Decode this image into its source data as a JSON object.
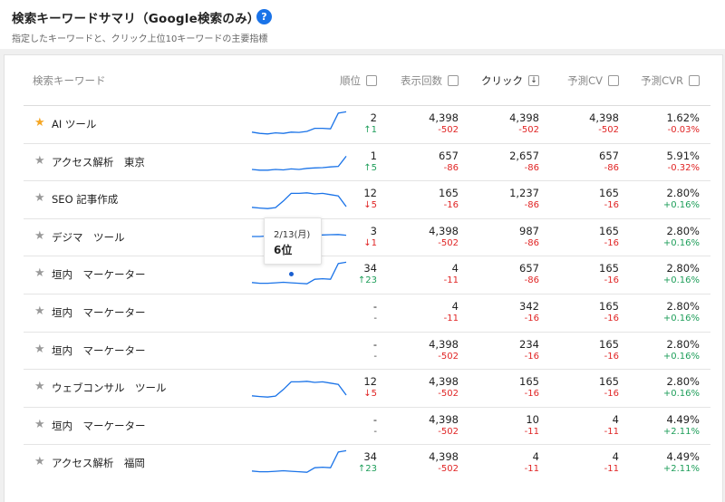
{
  "header": {
    "title": "検索キーワードサマリ（Google検索のみ）",
    "help_icon": "?",
    "subtitle": "指定したキーワードと、クリック上位10キーワードの主要指標"
  },
  "columns": {
    "keyword": "検索キーワード",
    "rank": "順位",
    "impressions": "表示回数",
    "clicks": "クリック",
    "cv": "予測CV",
    "cvr": "予測CVR",
    "sort_icon": "↓"
  },
  "colors": {
    "accent": "#1a73e8",
    "sparkline": "#1a73e8",
    "negative": "#e02424",
    "positive": "#1e9e5a",
    "star_on": "#f5a623",
    "star_off": "#9a9a9a"
  },
  "tooltip": {
    "date": "2/13(月)",
    "value": "6位"
  },
  "rows": [
    {
      "starred": true,
      "keyword": "AI ツール",
      "trend": [
        0.85,
        0.9,
        0.92,
        0.88,
        0.9,
        0.85,
        0.86,
        0.82,
        0.7,
        0.7,
        0.72,
        0.1,
        0.05
      ],
      "rank": "2",
      "rank_change": "↑1",
      "rank_dir": "up",
      "imp": "4,398",
      "imp_d": "-502",
      "clk": "4,398",
      "clk_d": "-502",
      "cv": "4,398",
      "cv_d": "-502",
      "cvr": "1.62%",
      "cvr_d": "-0.03%",
      "cvr_dir": "down"
    },
    {
      "starred": false,
      "keyword": "アクセス解析　東京",
      "trend": [
        0.82,
        0.85,
        0.85,
        0.82,
        0.84,
        0.8,
        0.82,
        0.78,
        0.76,
        0.75,
        0.72,
        0.7,
        0.3
      ],
      "rank": "1",
      "rank_change": "↑5",
      "rank_dir": "up",
      "imp": "657",
      "imp_d": "-86",
      "clk": "2,657",
      "clk_d": "-86",
      "cv": "657",
      "cv_d": "-86",
      "cvr": "5.91%",
      "cvr_d": "-0.32%",
      "cvr_dir": "down"
    },
    {
      "starred": false,
      "keyword": "SEO 記事作成",
      "trend": [
        0.85,
        0.88,
        0.9,
        0.86,
        0.6,
        0.3,
        0.3,
        0.28,
        0.32,
        0.3,
        0.35,
        0.4,
        0.82
      ],
      "rank": "12",
      "rank_change": "↓5",
      "rank_dir": "down",
      "imp": "165",
      "imp_d": "-16",
      "clk": "1,237",
      "clk_d": "-86",
      "cv": "165",
      "cv_d": "-16",
      "cvr": "2.80%",
      "cvr_d": "+0.16%",
      "cvr_dir": "up"
    },
    {
      "starred": false,
      "keyword": "デジマ　ツール",
      "trend": [
        0.5,
        0.5,
        0.48,
        0.46,
        0.45,
        0.45,
        0.44,
        0.43,
        0.45,
        0.44,
        0.43,
        0.42,
        0.45
      ],
      "rank": "3",
      "rank_change": "↓1",
      "rank_dir": "down",
      "imp": "4,398",
      "imp_d": "-502",
      "clk": "987",
      "clk_d": "-86",
      "cv": "165",
      "cv_d": "-16",
      "cvr": "2.80%",
      "cvr_d": "+0.16%",
      "cvr_dir": "up"
    },
    {
      "starred": false,
      "keyword": "垣内　マーケーター",
      "trend": [
        0.85,
        0.88,
        0.88,
        0.86,
        0.84,
        0.86,
        0.88,
        0.9,
        0.72,
        0.7,
        0.72,
        0.1,
        0.05
      ],
      "rank": "34",
      "rank_change": "↑23",
      "rank_dir": "up",
      "imp": "4",
      "imp_d": "-11",
      "clk": "657",
      "clk_d": "-86",
      "cv": "165",
      "cv_d": "-16",
      "cvr": "2.80%",
      "cvr_d": "+0.16%",
      "cvr_dir": "up"
    },
    {
      "starred": false,
      "keyword": "垣内　マーケーター",
      "trend": null,
      "rank": "-",
      "rank_change": "-",
      "rank_dir": "none",
      "imp": "4",
      "imp_d": "-11",
      "clk": "342",
      "clk_d": "-16",
      "cv": "165",
      "cv_d": "-16",
      "cvr": "2.80%",
      "cvr_d": "+0.16%",
      "cvr_dir": "up"
    },
    {
      "starred": false,
      "keyword": "垣内　マーケーター",
      "trend": null,
      "rank": "-",
      "rank_change": "-",
      "rank_dir": "none",
      "imp": "4,398",
      "imp_d": "-502",
      "clk": "234",
      "clk_d": "-16",
      "cv": "165",
      "cv_d": "-16",
      "cvr": "2.80%",
      "cvr_d": "+0.16%",
      "cvr_dir": "up"
    },
    {
      "starred": false,
      "keyword": "ウェブコンサル　ツール",
      "trend": [
        0.85,
        0.88,
        0.9,
        0.86,
        0.6,
        0.3,
        0.3,
        0.28,
        0.32,
        0.3,
        0.35,
        0.4,
        0.82
      ],
      "rank": "12",
      "rank_change": "↓5",
      "rank_dir": "down",
      "imp": "4,398",
      "imp_d": "-502",
      "clk": "165",
      "clk_d": "-16",
      "cv": "165",
      "cv_d": "-16",
      "cvr": "2.80%",
      "cvr_d": "+0.16%",
      "cvr_dir": "up"
    },
    {
      "starred": false,
      "keyword": "垣内　マーケーター",
      "trend": null,
      "rank": "-",
      "rank_change": "-",
      "rank_dir": "none",
      "imp": "4,398",
      "imp_d": "-502",
      "clk": "10",
      "clk_d": "-11",
      "cv": "4",
      "cv_d": "-11",
      "cvr": "4.49%",
      "cvr_d": "+2.11%",
      "cvr_dir": "up"
    },
    {
      "starred": false,
      "keyword": "アクセス解析　福岡",
      "trend": [
        0.85,
        0.88,
        0.88,
        0.86,
        0.84,
        0.86,
        0.88,
        0.9,
        0.72,
        0.7,
        0.72,
        0.1,
        0.05
      ],
      "rank": "34",
      "rank_change": "↑23",
      "rank_dir": "up",
      "imp": "4,398",
      "imp_d": "-502",
      "clk": "4",
      "clk_d": "-11",
      "cv": "4",
      "cv_d": "-11",
      "cvr": "4.49%",
      "cvr_d": "+2.11%",
      "cvr_dir": "up"
    }
  ]
}
